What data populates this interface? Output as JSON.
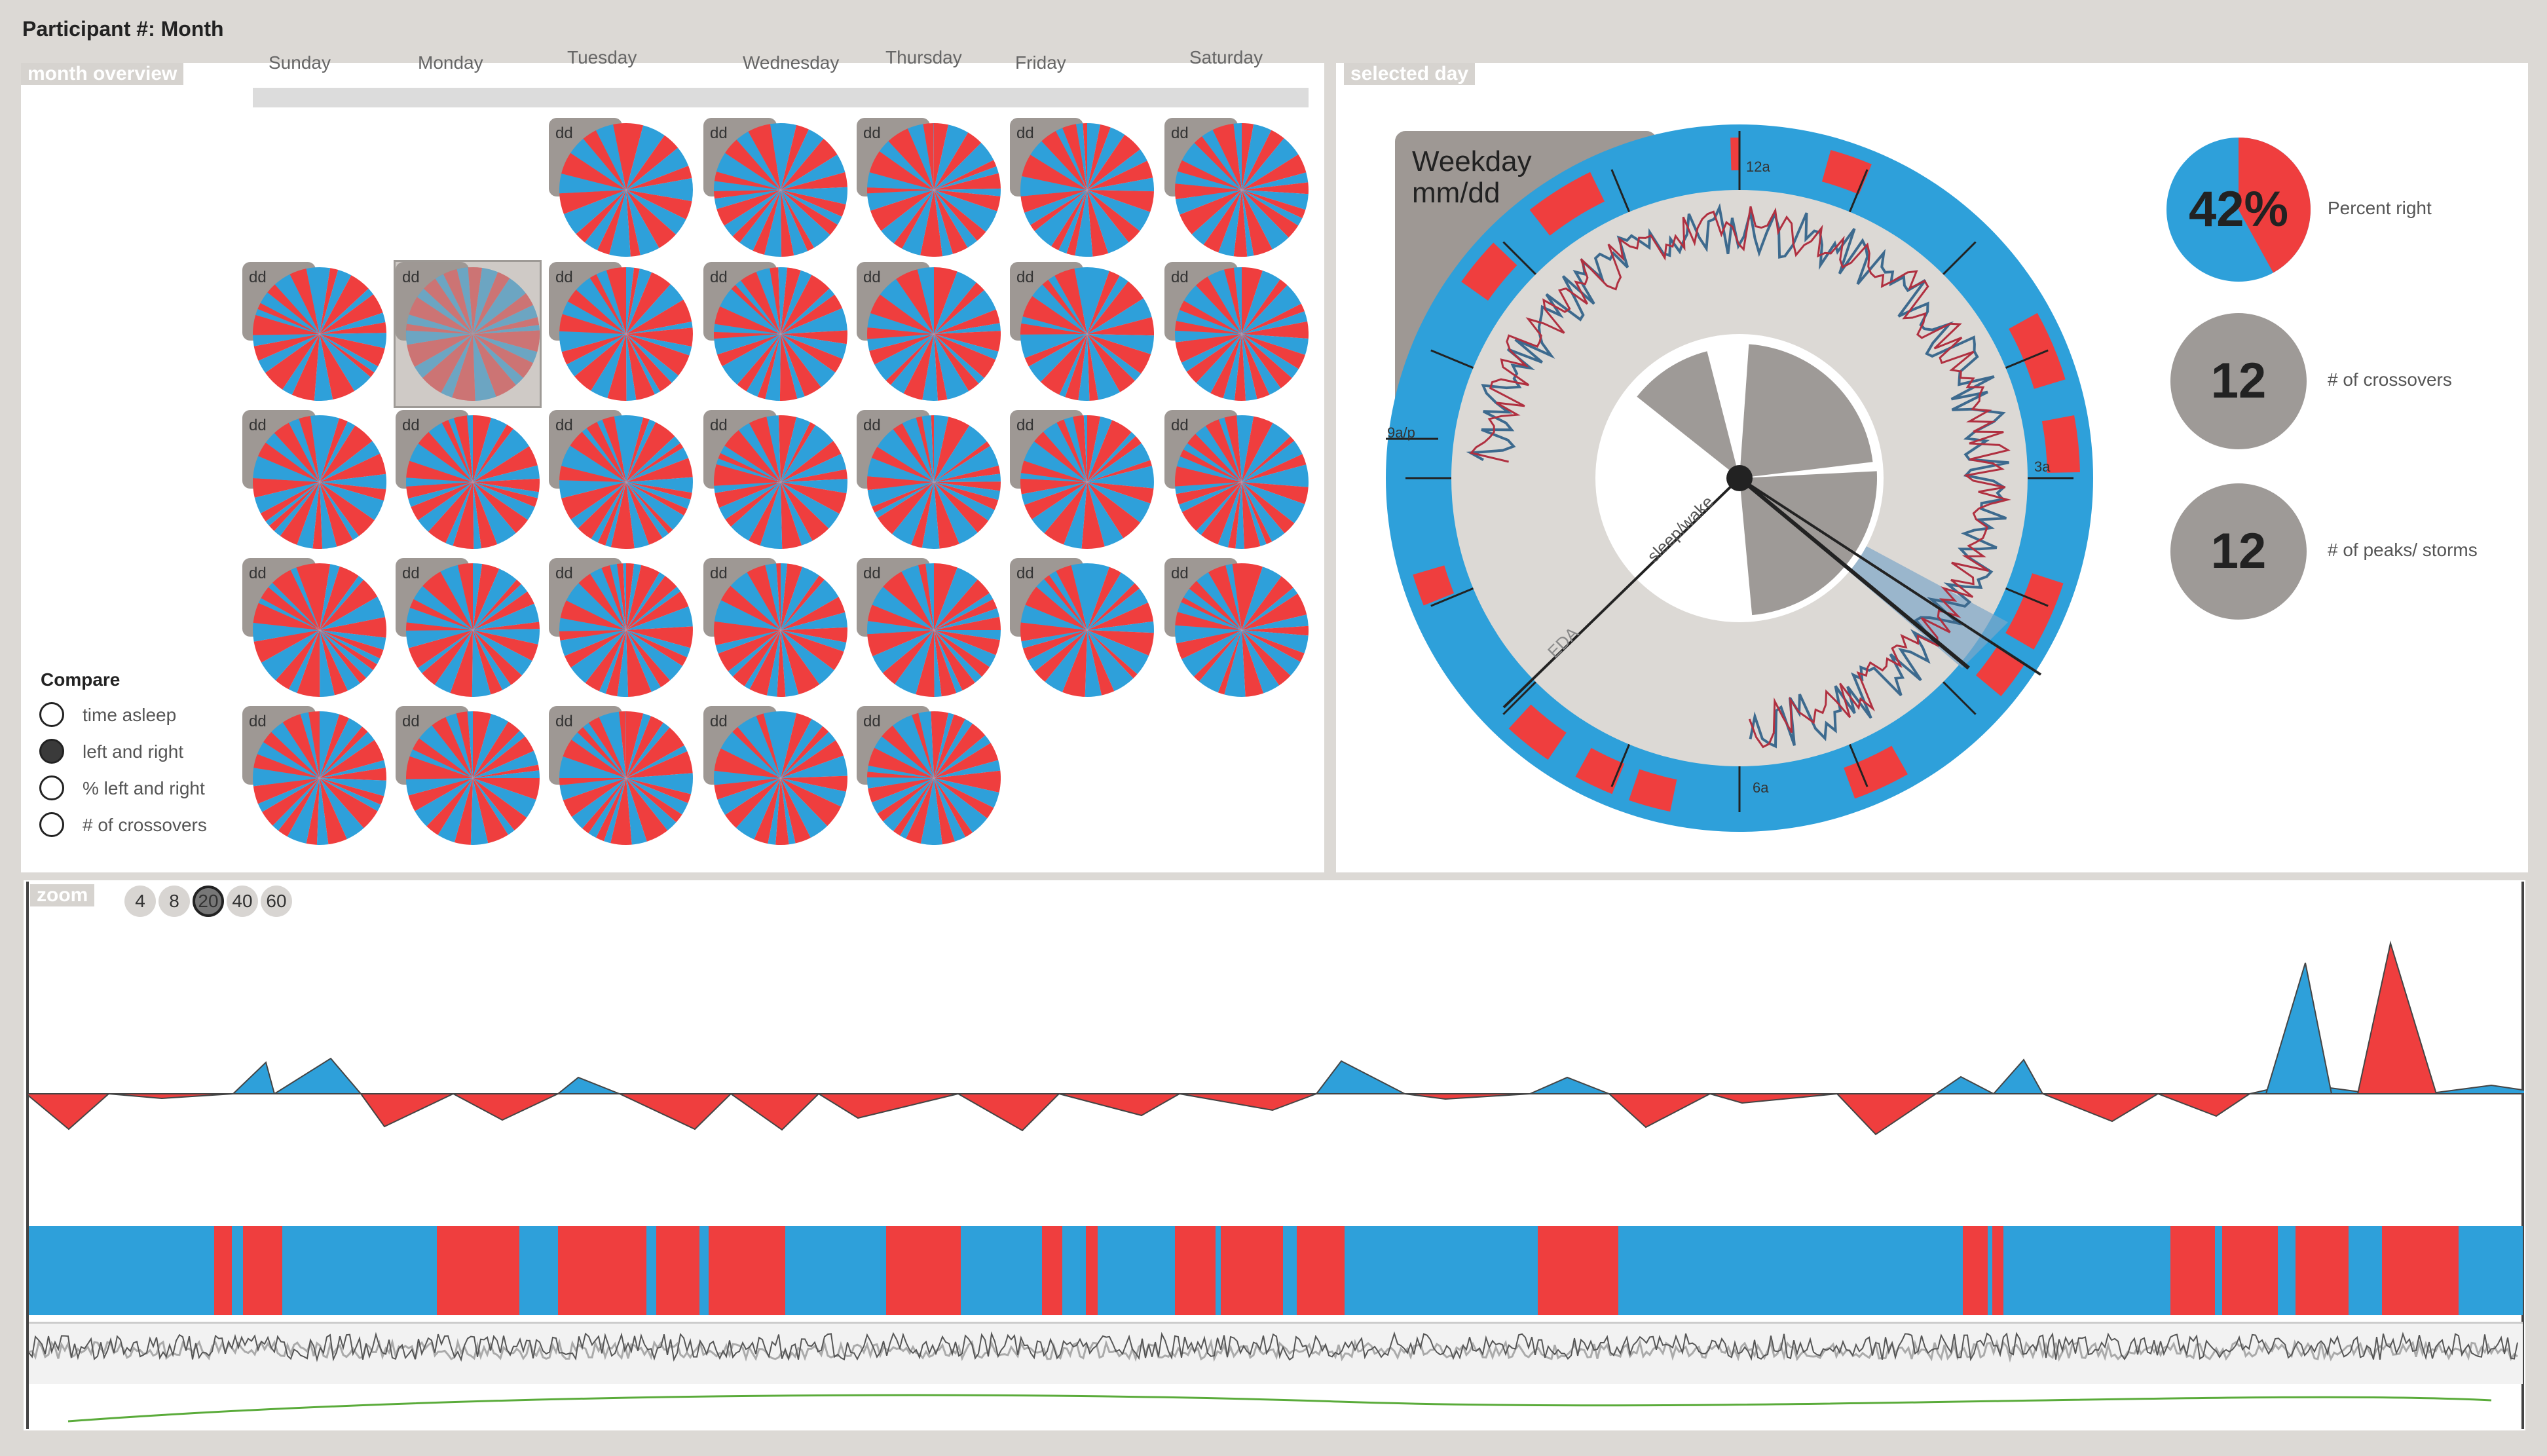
{
  "header": {
    "title": "Participant #: Month"
  },
  "month_overview": {
    "label": "month overview",
    "days": [
      "Sunday",
      "Monday",
      "Tuesday",
      "Wednesday",
      "Thursday",
      "Friday",
      "Saturday"
    ],
    "cell_label": "dd",
    "compare": {
      "title": "Compare",
      "options": [
        {
          "label": "time asleep",
          "selected": false
        },
        {
          "label": "left and right",
          "selected": true
        },
        {
          "label": "% left and right",
          "selected": false
        },
        {
          "label": "# of crossovers",
          "selected": false
        }
      ]
    }
  },
  "selected_day": {
    "label": "selected day",
    "day_title": "Weekday",
    "date": "mm/dd",
    "clock_labels": {
      "top": "12a",
      "right": "3a",
      "bottom": "6a",
      "left": "9a/p"
    },
    "ring_labels": {
      "sleep": "sleep/wake",
      "eda": "EDA"
    },
    "stats": [
      {
        "value": "42%",
        "label": "Percent right"
      },
      {
        "value": "12",
        "label": "# of crossovers"
      },
      {
        "value": "12",
        "label": "# of peaks/ storms"
      }
    ]
  },
  "zoom": {
    "label": "zoom",
    "levels": [
      "4",
      "8",
      "20",
      "40",
      "60"
    ],
    "selected": "20"
  },
  "colors": {
    "red": "#ef3e3e",
    "blue": "#2ea0da",
    "gray": "#9e9a97",
    "green": "#5aab3a"
  }
}
